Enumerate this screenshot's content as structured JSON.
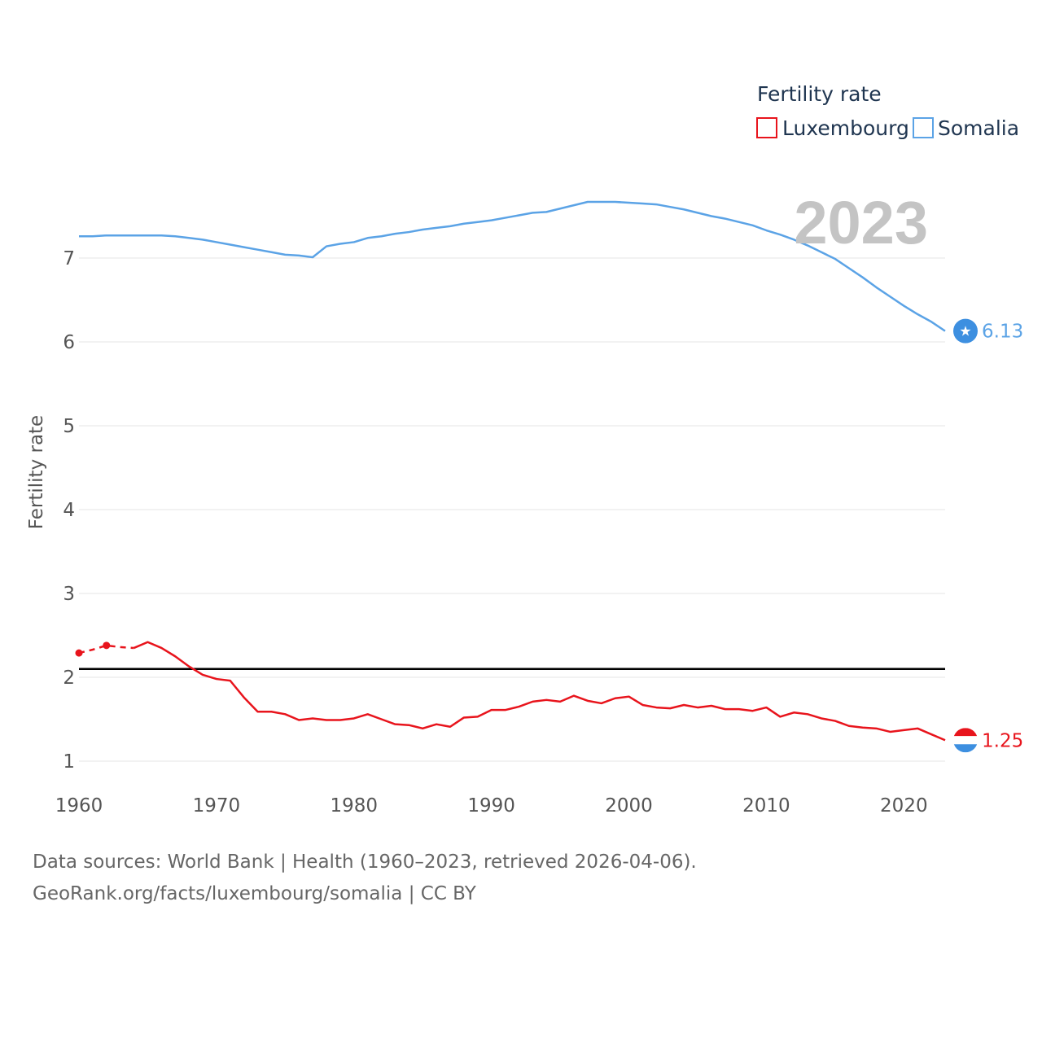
{
  "chart_data": {
    "type": "line",
    "ylabel": "Fertility rate",
    "xlim": [
      1960,
      2023
    ],
    "ylim": [
      1,
      7.3
    ],
    "x_ticks": [
      1960,
      1970,
      1980,
      1990,
      2000,
      2010,
      2020
    ],
    "y_ticks": [
      1,
      2,
      3,
      4,
      5,
      6,
      7
    ],
    "reference_line": 2.1,
    "current_year_label": "2023",
    "legend": {
      "title": "Fertility rate",
      "position": "top-right"
    },
    "x": [
      1960,
      1961,
      1962,
      1963,
      1964,
      1965,
      1966,
      1967,
      1968,
      1969,
      1970,
      1971,
      1972,
      1973,
      1974,
      1975,
      1976,
      1977,
      1978,
      1979,
      1980,
      1981,
      1982,
      1983,
      1984,
      1985,
      1986,
      1987,
      1988,
      1989,
      1990,
      1991,
      1992,
      1993,
      1994,
      1995,
      1996,
      1997,
      1998,
      1999,
      2000,
      2001,
      2002,
      2003,
      2004,
      2005,
      2006,
      2007,
      2008,
      2009,
      2010,
      2011,
      2012,
      2013,
      2014,
      2015,
      2016,
      2017,
      2018,
      2019,
      2020,
      2021,
      2022,
      2023
    ],
    "series": [
      {
        "name": "Luxembourg",
        "color": "#e8141c",
        "end_value_label": "1.25",
        "dashed_until": 1964,
        "marked_points": [
          1960,
          1962
        ],
        "values": [
          2.29,
          2.33,
          2.38,
          2.36,
          2.35,
          2.42,
          2.35,
          2.25,
          2.13,
          2.03,
          1.98,
          1.96,
          1.76,
          1.59,
          1.59,
          1.56,
          1.49,
          1.51,
          1.49,
          1.49,
          1.51,
          1.56,
          1.5,
          1.44,
          1.43,
          1.39,
          1.44,
          1.41,
          1.52,
          1.53,
          1.61,
          1.61,
          1.65,
          1.71,
          1.73,
          1.71,
          1.78,
          1.72,
          1.69,
          1.75,
          1.77,
          1.67,
          1.64,
          1.63,
          1.67,
          1.64,
          1.66,
          1.62,
          1.62,
          1.6,
          1.64,
          1.53,
          1.58,
          1.56,
          1.51,
          1.48,
          1.42,
          1.4,
          1.39,
          1.35,
          1.37,
          1.39,
          1.32,
          1.25
        ]
      },
      {
        "name": "Somalia",
        "color": "#5ba3e6",
        "end_value_label": "6.13",
        "values": [
          7.26,
          7.26,
          7.27,
          7.27,
          7.27,
          7.27,
          7.27,
          7.26,
          7.24,
          7.22,
          7.19,
          7.16,
          7.13,
          7.1,
          7.07,
          7.04,
          7.03,
          7.01,
          7.14,
          7.17,
          7.19,
          7.24,
          7.26,
          7.29,
          7.31,
          7.34,
          7.36,
          7.38,
          7.41,
          7.43,
          7.45,
          7.48,
          7.51,
          7.54,
          7.55,
          7.59,
          7.63,
          7.67,
          7.67,
          7.67,
          7.66,
          7.65,
          7.64,
          7.61,
          7.58,
          7.54,
          7.5,
          7.47,
          7.43,
          7.39,
          7.33,
          7.28,
          7.22,
          7.15,
          7.07,
          6.99,
          6.88,
          6.77,
          6.65,
          6.54,
          6.43,
          6.33,
          6.24,
          6.13
        ]
      }
    ]
  },
  "sources": {
    "line1": "Data sources: World Bank | Health (1960–2023, retrieved 2026-04-06).",
    "line2": "GeoRank.org/facts/luxembourg/somalia | CC BY"
  },
  "flags": {
    "somalia_star": "★"
  }
}
